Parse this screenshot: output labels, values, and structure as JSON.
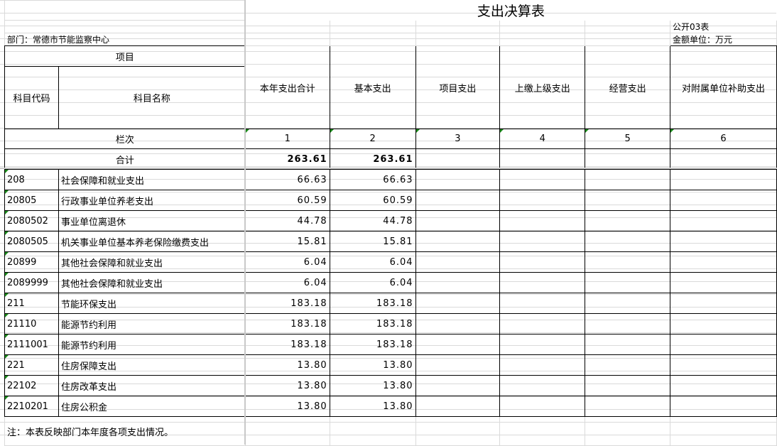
{
  "title": "支出决算表",
  "table_no": "公开03表",
  "department": "部门：常德市节能监察中心",
  "unit": "金额单位：万元",
  "headers": {
    "item": "项目",
    "code": "科目代码",
    "name": "科目名称",
    "cols": [
      "本年支出合计",
      "基本支出",
      "项目支出",
      "上缴上级支出",
      "经营支出",
      "对附属单位补助支出"
    ]
  },
  "row_index": {
    "label": "栏次",
    "nums": [
      "1",
      "2",
      "3",
      "4",
      "5",
      "6"
    ]
  },
  "total": {
    "label": "合计",
    "values": [
      "263.61",
      "263.61",
      "",
      "",
      "",
      ""
    ]
  },
  "rows": [
    {
      "code": "208",
      "name": "社会保障和就业支出",
      "v1": "66.63",
      "v2": "66.63"
    },
    {
      "code": "20805",
      "name": "行政事业单位养老支出",
      "v1": "60.59",
      "v2": "60.59"
    },
    {
      "code": "2080502",
      "name": "事业单位离退休",
      "v1": "44.78",
      "v2": "44.78"
    },
    {
      "code": "2080505",
      "name": "机关事业单位基本养老保险缴费支出",
      "v1": "15.81",
      "v2": "15.81"
    },
    {
      "code": "20899",
      "name": "其他社会保障和就业支出",
      "v1": "6.04",
      "v2": "6.04"
    },
    {
      "code": "2089999",
      "name": "其他社会保障和就业支出",
      "v1": "6.04",
      "v2": "6.04"
    },
    {
      "code": "211",
      "name": "节能环保支出",
      "v1": "183.18",
      "v2": "183.18"
    },
    {
      "code": "21110",
      "name": "能源节约利用",
      "v1": "183.18",
      "v2": "183.18"
    },
    {
      "code": "2111001",
      "name": "能源节约利用",
      "v1": "183.18",
      "v2": "183.18"
    },
    {
      "code": "221",
      "name": "住房保障支出",
      "v1": "13.80",
      "v2": "13.80"
    },
    {
      "code": "22102",
      "name": "住房改革支出",
      "v1": "13.80",
      "v2": "13.80"
    },
    {
      "code": "2210201",
      "name": "住房公积金",
      "v1": "13.80",
      "v2": "13.80"
    }
  ],
  "note": "注：本表反映部门本年度各项支出情况。",
  "colors": {
    "grid": "#dadada",
    "border": "#000000",
    "comment_marker": "#1a8a1a"
  }
}
